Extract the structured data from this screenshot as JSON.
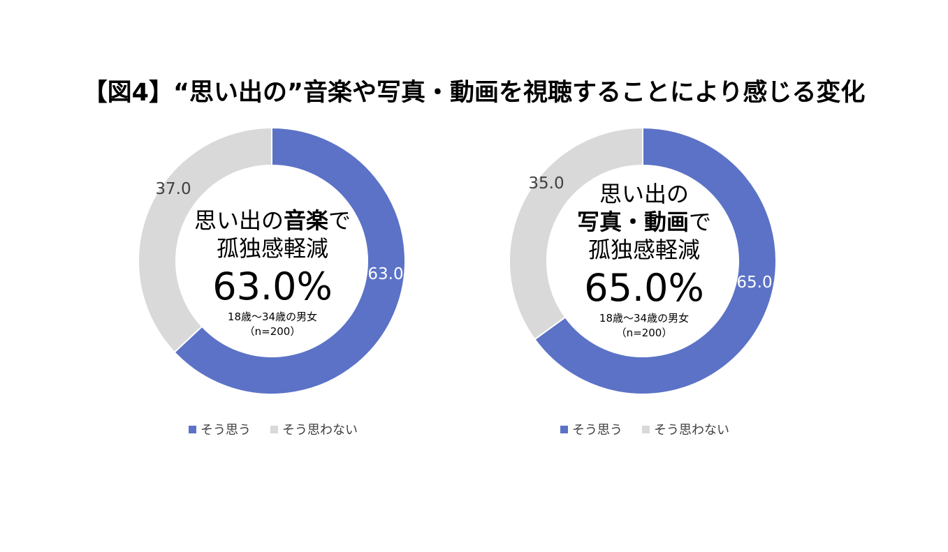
{
  "title": "【図4】“思い出の”音楽や写真・動画を視聴することにより感じる変化",
  "colors": {
    "yes": "#5b72c6",
    "no": "#d9d9d9"
  },
  "legend": {
    "yes": "そう思う",
    "no": "そう思わない"
  },
  "charts": [
    {
      "center": {
        "line1_pre": "思い出の",
        "line1_bold": "音楽",
        "line1_post": "で",
        "line2": "孤独感軽減",
        "pct": "63.0%",
        "sub1": "18歳～34歳の男女",
        "sub2": "（n=200）"
      }
    },
    {
      "center": {
        "line0": "思い出の",
        "line1_bold": "写真・動画",
        "line1_post": "で",
        "line2": "孤独感軽減",
        "pct": "65.0%",
        "sub1": "18歳～34歳の男女",
        "sub2": "（n=200）"
      }
    }
  ],
  "chart_data": [
    {
      "type": "pie",
      "style": "donut",
      "labels": [
        "そう思う",
        "そう思わない"
      ],
      "values": [
        63.0,
        37.0
      ],
      "data_labels": [
        "63.0",
        "37.0"
      ]
    },
    {
      "type": "pie",
      "style": "donut",
      "labels": [
        "そう思う",
        "そう思わない"
      ],
      "values": [
        65.0,
        35.0
      ],
      "data_labels": [
        "65.0",
        "35.0"
      ]
    }
  ]
}
